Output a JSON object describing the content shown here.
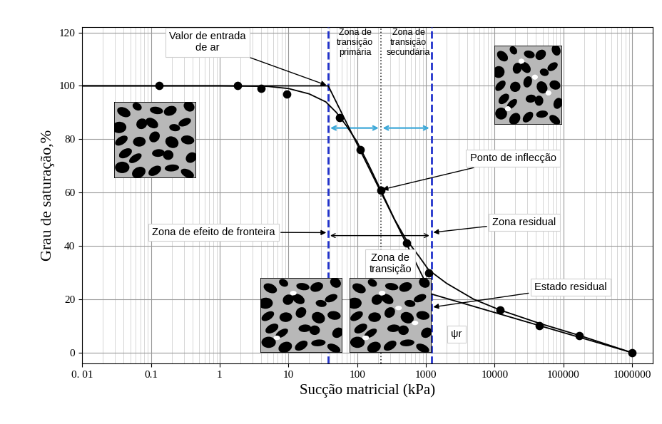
{
  "chart_data": {
    "type": "scatter",
    "x_label": "Sucção matricial (kPa)",
    "y_label": "Grau de saturação,%",
    "log": "x",
    "grid": true,
    "xlim": [
      0.01,
      2000000
    ],
    "ylim": [
      -4,
      122
    ],
    "xticks": [
      {
        "value": 0.01,
        "label": "0. 01"
      },
      0.1,
      1,
      10,
      100,
      1000,
      10000,
      100000,
      1000000
    ],
    "yticks": [
      0,
      20,
      40,
      60,
      80,
      100,
      120
    ],
    "series": [
      {
        "type": "scatter",
        "color": "#000000",
        "marker": "o",
        "x": [
          0.13,
          1.8,
          4,
          9.5,
          55,
          110,
          220,
          520,
          1100,
          12000,
          45000,
          170000,
          1000000
        ],
        "values": [
          100,
          100,
          99,
          97,
          88,
          76,
          61,
          41,
          30,
          16,
          10,
          6.5,
          0
        ]
      },
      {
        "type": "line",
        "color": "#000000",
        "line_style": "solid",
        "x": [
          0.01,
          1,
          5,
          10,
          20,
          35,
          50,
          70,
          100,
          150,
          220,
          350,
          500,
          800,
          1100,
          2000,
          5000,
          12000,
          45000,
          170000,
          1000000
        ],
        "values": [
          100,
          100,
          99.8,
          99,
          97,
          94,
          90,
          85,
          79,
          70,
          61,
          50,
          43,
          36,
          31,
          26,
          20,
          16,
          11,
          6.5,
          0
        ]
      },
      {
        "type": "line",
        "color": "#000000",
        "line_style": "solid",
        "x": [
          0.01,
          38,
          1200,
          1000000
        ],
        "values": [
          100,
          100,
          22,
          0
        ]
      }
    ],
    "reference_lines": [
      {
        "x": 38,
        "color": "#2233cc",
        "line_style": "dashed"
      },
      {
        "x": 220,
        "color": "#333333",
        "line_style": "dotted"
      },
      {
        "x": 1200,
        "color": "#2233cc",
        "line_style": "dashed"
      }
    ],
    "annotations": [
      {
        "text": "Valor de entrada\nde ar",
        "x": 38,
        "y": 100
      },
      {
        "text": "Zona de\ntransição\nprimária"
      },
      {
        "text": "Zona de\ntransição\nsecundária"
      },
      {
        "text": "Ponto de inflecção",
        "x": 220,
        "y": 61
      },
      {
        "text": "Zona de efeito de fronteira",
        "x": 38,
        "y": 45
      },
      {
        "text": "Zona residual",
        "x": 1200,
        "y": 45
      },
      {
        "text": "Zona de\ntransição",
        "x": 800,
        "y": 25
      },
      {
        "text": "Estado residual",
        "x": 1200,
        "y": 17
      },
      {
        "text": "ψr"
      }
    ]
  }
}
